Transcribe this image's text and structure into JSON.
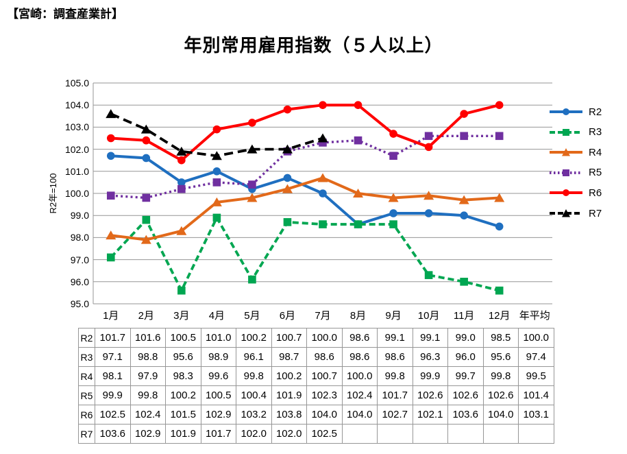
{
  "page": {
    "header": "【宮崎：調査産業計】"
  },
  "chart_data": {
    "type": "line",
    "title": "年別常用雇用指数（５人以上）",
    "ylabel": "R2年=100",
    "ylim": [
      95.0,
      105.0
    ],
    "ytick_step": 1.0,
    "grid": true,
    "grid_color": "#969696",
    "legend_position": "right",
    "categories": [
      "1月",
      "2月",
      "3月",
      "4月",
      "5月",
      "6月",
      "7月",
      "8月",
      "9月",
      "10月",
      "11月",
      "12月",
      "年平均"
    ],
    "annual_average_label": "年平均",
    "series": [
      {
        "name": "R2",
        "color": "#1F6FC0",
        "line_style": "solid",
        "dash": null,
        "marker": "circle",
        "values": [
          101.7,
          101.6,
          100.5,
          101.0,
          100.2,
          100.7,
          100.0,
          98.6,
          99.1,
          99.1,
          99.0,
          98.5
        ],
        "annual_average": 100.0
      },
      {
        "name": "R3",
        "color": "#00A651",
        "line_style": "dashed",
        "dash": "9 5",
        "marker": "square",
        "values": [
          97.1,
          98.8,
          95.6,
          98.9,
          96.1,
          98.7,
          98.6,
          98.6,
          98.6,
          96.3,
          96.0,
          95.6
        ],
        "annual_average": 97.4
      },
      {
        "name": "R4",
        "color": "#E2691A",
        "line_style": "solid",
        "dash": null,
        "marker": "triangle",
        "values": [
          98.1,
          97.9,
          98.3,
          99.6,
          99.8,
          100.2,
          100.7,
          100.0,
          99.8,
          99.9,
          99.7,
          99.8
        ],
        "annual_average": 99.5
      },
      {
        "name": "R5",
        "color": "#7030A0",
        "line_style": "dotted",
        "dash": "3 4.2",
        "marker": "square",
        "values": [
          99.9,
          99.8,
          100.2,
          100.5,
          100.4,
          101.9,
          102.3,
          102.4,
          101.7,
          102.6,
          102.6,
          102.6
        ],
        "annual_average": 101.4
      },
      {
        "name": "R6",
        "color": "#FF0000",
        "line_style": "solid",
        "dash": null,
        "marker": "circle",
        "values": [
          102.5,
          102.4,
          101.5,
          102.9,
          103.2,
          103.8,
          104.0,
          104.0,
          102.7,
          102.1,
          103.6,
          104.0
        ],
        "annual_average": 103.1
      },
      {
        "name": "R7",
        "color": "#000000",
        "line_style": "dashed",
        "dash": "13 7",
        "marker": "triangle",
        "values": [
          103.6,
          102.9,
          101.9,
          101.7,
          102.0,
          102.0,
          102.5
        ],
        "annual_average": null
      }
    ]
  }
}
